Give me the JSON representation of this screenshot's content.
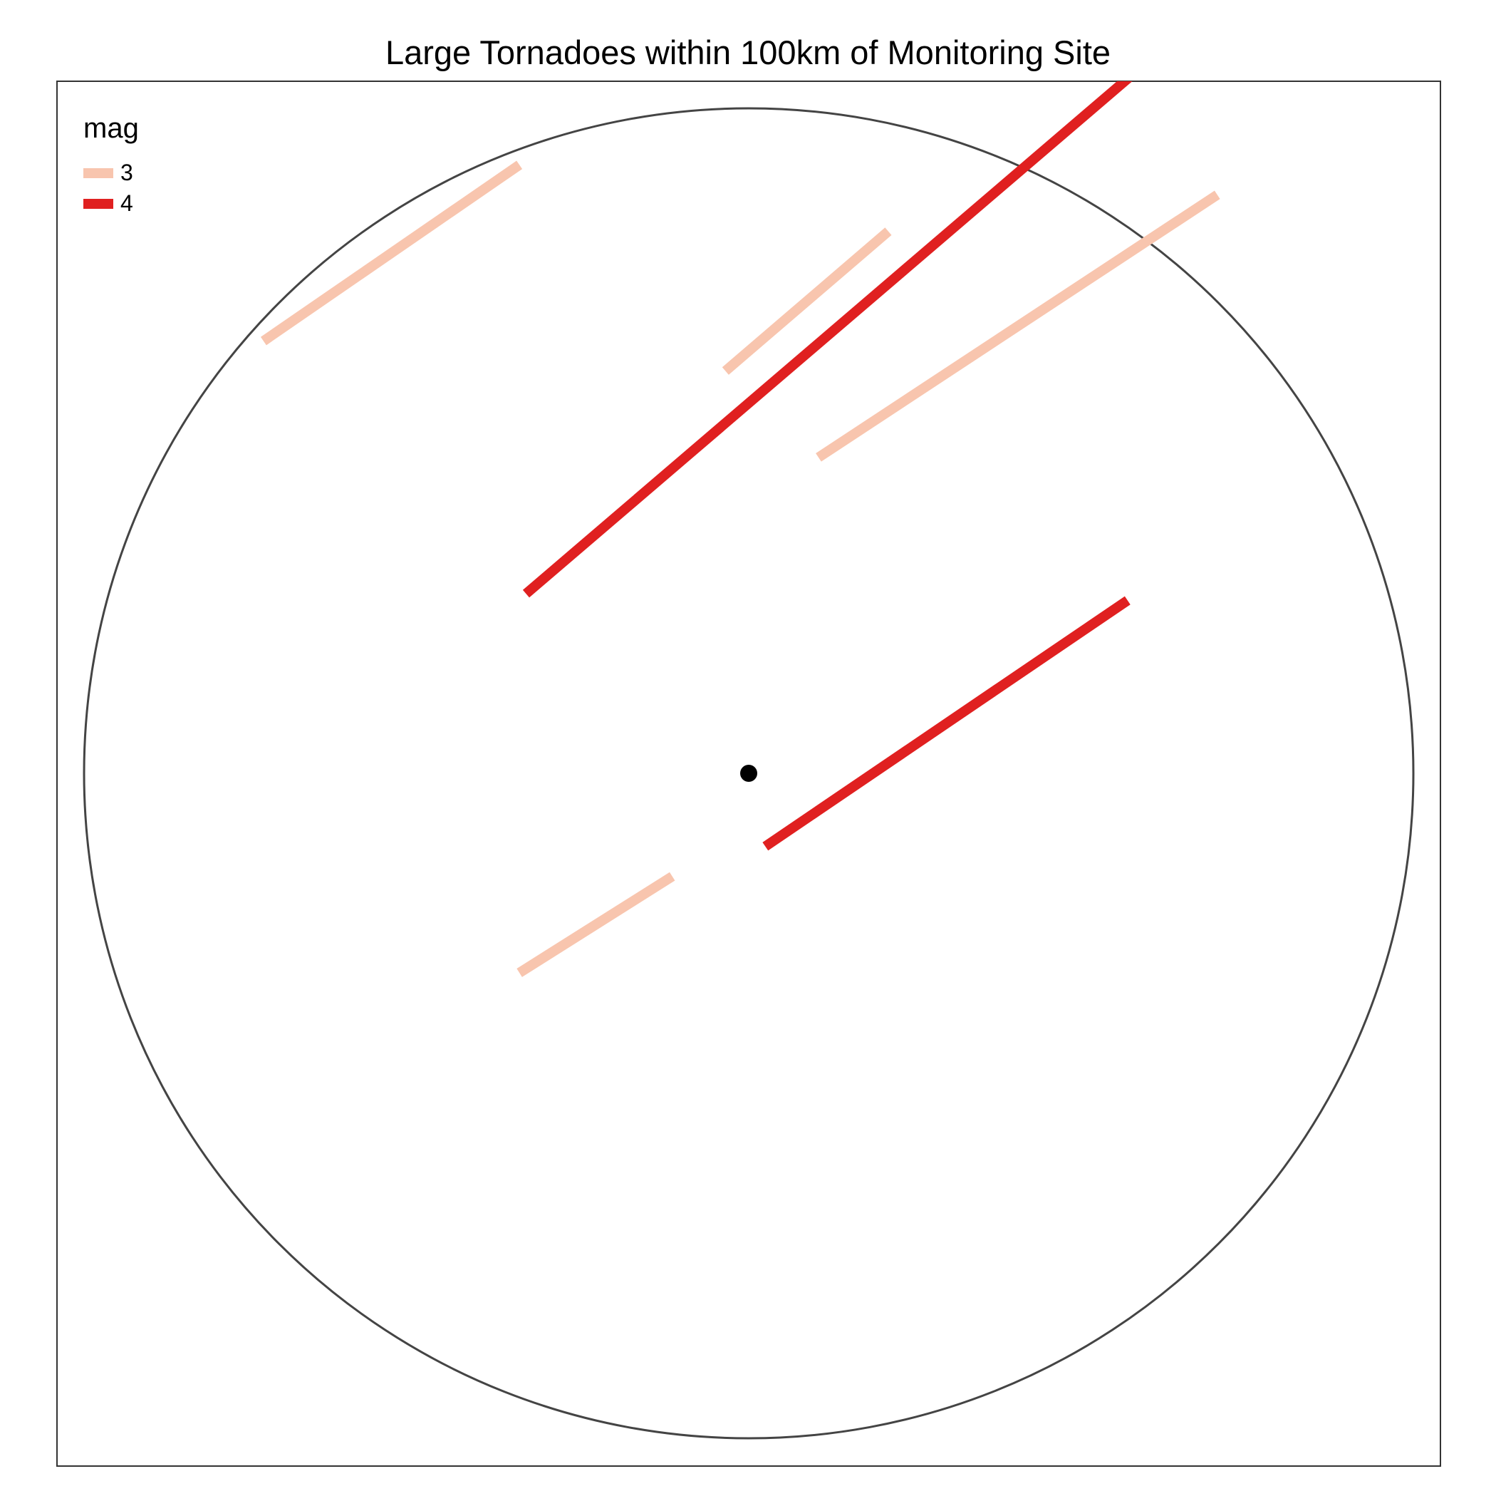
{
  "title": "Large Tornadoes within 100km of Monitoring Site",
  "legend": {
    "title": "mag",
    "items": [
      {
        "label": "3",
        "color": "#f8c5ae"
      },
      {
        "label": "4",
        "color": "#e02020"
      }
    ]
  },
  "site": {
    "label": "Monitoring Site",
    "color": "#000000"
  },
  "buffer_radius_km": 100,
  "colors": {
    "border": "#444444",
    "frame": "#333333"
  },
  "chart_data": {
    "type": "map",
    "units": "km offset from monitoring site",
    "tracks": [
      {
        "mag": 3,
        "start": [
          -73.0,
          65.0
        ],
        "end": [
          -34.5,
          91.5
        ]
      },
      {
        "mag": 3,
        "start": [
          -3.5,
          60.5
        ],
        "end": [
          21.0,
          81.5
        ]
      },
      {
        "mag": 3,
        "start": [
          10.5,
          47.5
        ],
        "end": [
          70.5,
          87.0
        ]
      },
      {
        "mag": 3,
        "start": [
          -34.5,
          -30.0
        ],
        "end": [
          -11.5,
          -15.5
        ]
      },
      {
        "mag": 4,
        "start": [
          -33.5,
          27.0
        ],
        "end": [
          67.0,
          113.0
        ]
      },
      {
        "mag": 4,
        "start": [
          2.5,
          -11.0
        ],
        "end": [
          57.0,
          26.0
        ]
      }
    ]
  }
}
